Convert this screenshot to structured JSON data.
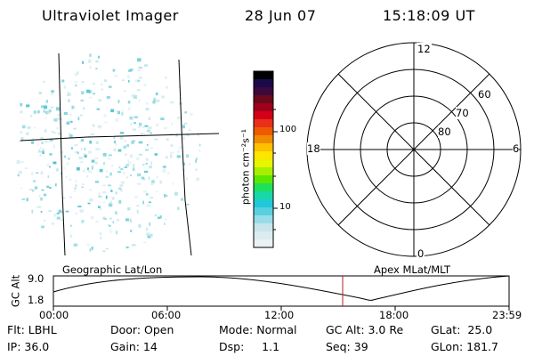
{
  "header": {
    "instrument": "Ultraviolet Imager",
    "date": "28 Jun 07",
    "time": "15:18:09 UT"
  },
  "colorbar": {
    "unit_label": "photon cm⁻²s⁻¹",
    "ticks": [
      "100",
      "10"
    ],
    "colors": [
      "#000000",
      "#1a0a4a",
      "#3a0a3a",
      "#6a0a1a",
      "#a0001a",
      "#d4001a",
      "#e8301a",
      "#ee5a00",
      "#f08a00",
      "#ffc000",
      "#ffe400",
      "#e6f500",
      "#a8ee00",
      "#5ce600",
      "#1ee05a",
      "#18d8a8",
      "#20c8d8",
      "#58d0e0",
      "#98dce8",
      "#c6e6ec",
      "#dcebee",
      "#ebf2f3"
    ]
  },
  "image_panel": {
    "name": "geographic-map",
    "colors": {
      "speckle_light": "#cfe9ee",
      "speckle_mid": "#86d4de",
      "speckle_dark": "#52c2cf"
    }
  },
  "polar_plot": {
    "hour_labels": [
      "12",
      "18",
      "6",
      "0"
    ],
    "lat_labels": [
      "60",
      "70",
      "80"
    ]
  },
  "timeline": {
    "left_title": "Geographic Lat/Lon",
    "right_title": "Apex MLat/MLT",
    "y_axis_label": "GC Alt",
    "y_ticks": [
      "9.0",
      "1.8"
    ],
    "x_ticks": [
      "00:00",
      "06:00",
      "12:00",
      "18:00",
      "23:59"
    ],
    "marker_color": "#b22222"
  },
  "status": {
    "flt": "Flt: LBHL",
    "ip": "IP: 36.0",
    "door": "Door: Open",
    "gain": "Gain: 14",
    "mode": "Mode: Normal",
    "dsp": "Dsp:     1.1",
    "gcalt": "GC Alt: 3.0 Re",
    "seq": "Seq: 39",
    "glat": "GLat:  25.0",
    "glon": "GLon: 181.7"
  }
}
